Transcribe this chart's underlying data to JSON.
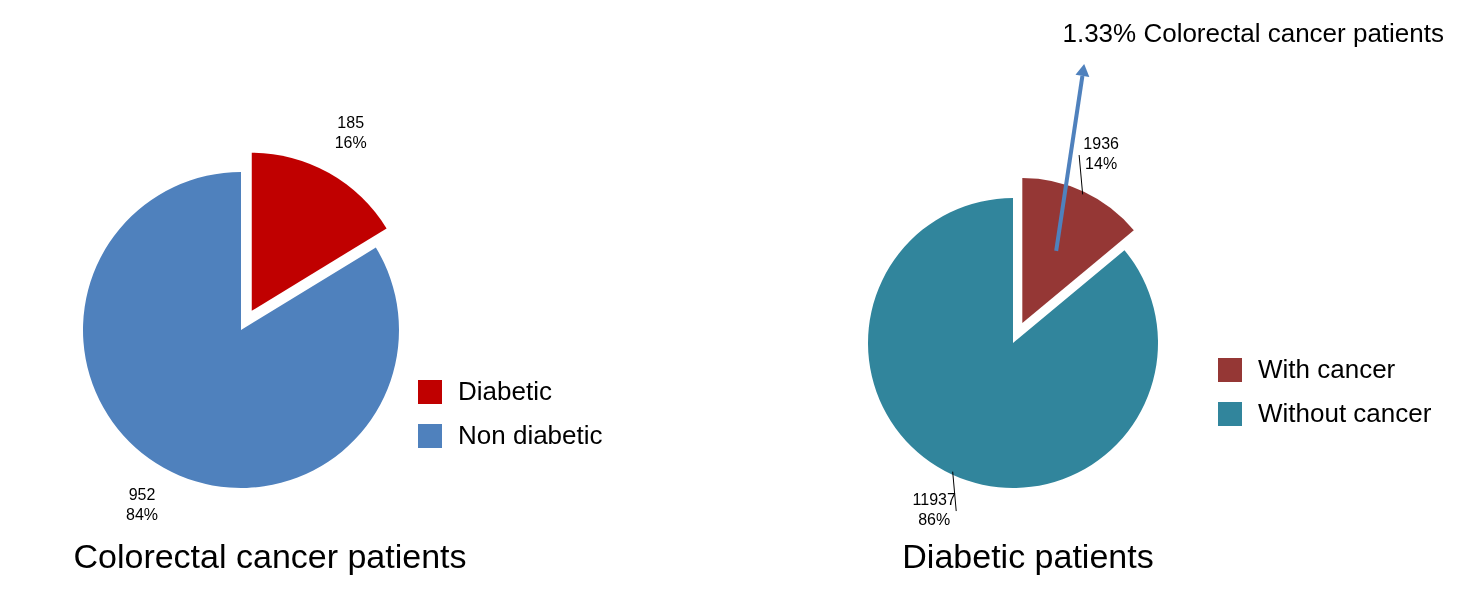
{
  "chart_data": [
    {
      "type": "pie",
      "title": "Colorectal cancer patients",
      "categories": [
        "Diabetic",
        "Non diabetic"
      ],
      "values": [
        185,
        952
      ],
      "colors": [
        "#c00000",
        "#4f81bd"
      ],
      "value_labels": [
        "185\n16%",
        "952\n84%"
      ],
      "legend": "right"
    },
    {
      "type": "pie",
      "title": "Diabetic patients",
      "categories": [
        "With cancer",
        "Without cancer"
      ],
      "values": [
        1936,
        11937
      ],
      "colors": [
        "#953735",
        "#31859c"
      ],
      "value_labels": [
        "1936\n14%",
        "11937\n86%"
      ],
      "legend": "right",
      "annotations": [
        "1.33% Colorectal cancer patients"
      ]
    }
  ]
}
